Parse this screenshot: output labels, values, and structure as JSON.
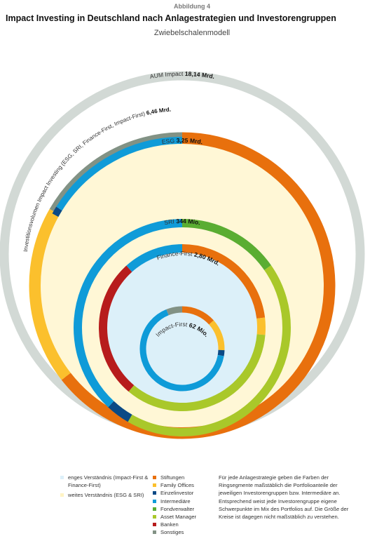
{
  "figure_label": "Abbildung 4",
  "title": "Impact Investing in Deutschland nach Anlagestrategien und Investorengruppen",
  "subtitle": "Zwiebelschalenmodell",
  "colors": {
    "stiftungen": "#e8700d",
    "family_offices": "#fbc02d",
    "einzelinvestor": "#0b4a86",
    "intermediaere": "#0f9bd8",
    "fondverwalter": "#5aad32",
    "asset_manager": "#a9c82a",
    "banken": "#b71c1c",
    "sonstiges": "#829285",
    "aum_ring": "#d2d9d5",
    "weites_fill": "#fff7d6",
    "enges_fill": "#dcf0f9"
  },
  "rings": [
    {
      "key": "aum",
      "label": "AUM Impact",
      "value": "18,14 Mrd."
    },
    {
      "key": "investitionsvolumen",
      "label": "Investitionsvolumen Impact Investing (ESG, SRI, Finance-First, Impact-First)",
      "value": "6,46 Mrd."
    },
    {
      "key": "esg",
      "label": "ESG",
      "value": "3,25 Mrd."
    },
    {
      "key": "sri",
      "label": "SRI",
      "value": "344 Mio."
    },
    {
      "key": "finance_first",
      "label": "Finance-First",
      "value": "2,80 Mrd."
    },
    {
      "key": "impact_first",
      "label": "Impact-First",
      "value": "62 Mio."
    }
  ],
  "legend_scope": [
    {
      "label": "enges Verständnis (Impact-First & Finance-First)",
      "color_key": "enges_fill"
    },
    {
      "label": "weites Verständnis (ESG & SRI)",
      "color_key": "weites_fill"
    }
  ],
  "legend_groups": [
    {
      "label": "Stiftungen",
      "color_key": "stiftungen"
    },
    {
      "label": "Family Offices",
      "color_key": "family_offices"
    },
    {
      "label": "Einzelinvestor",
      "color_key": "einzelinvestor"
    },
    {
      "label": "Intermediäre",
      "color_key": "intermediaere"
    },
    {
      "label": "Fondverwalter",
      "color_key": "fondverwalter"
    },
    {
      "label": "Asset Manager",
      "color_key": "asset_manager"
    },
    {
      "label": "Banken",
      "color_key": "banken"
    },
    {
      "label": "Sonstiges",
      "color_key": "sonstiges"
    }
  ],
  "note": "Für jede Anlagestrategie geben die Farben der Ringsegmente maßstäblich die Portfolioanteile der jeweiligen Investorengruppen bzw. Intermediäre an. Entsprechend weist jede Investorengruppe eigene Schwerpunkte im Mix des Portfolios auf. Die Größe der Kreise ist dagegen nicht maßstäblich zu verstehen."
}
